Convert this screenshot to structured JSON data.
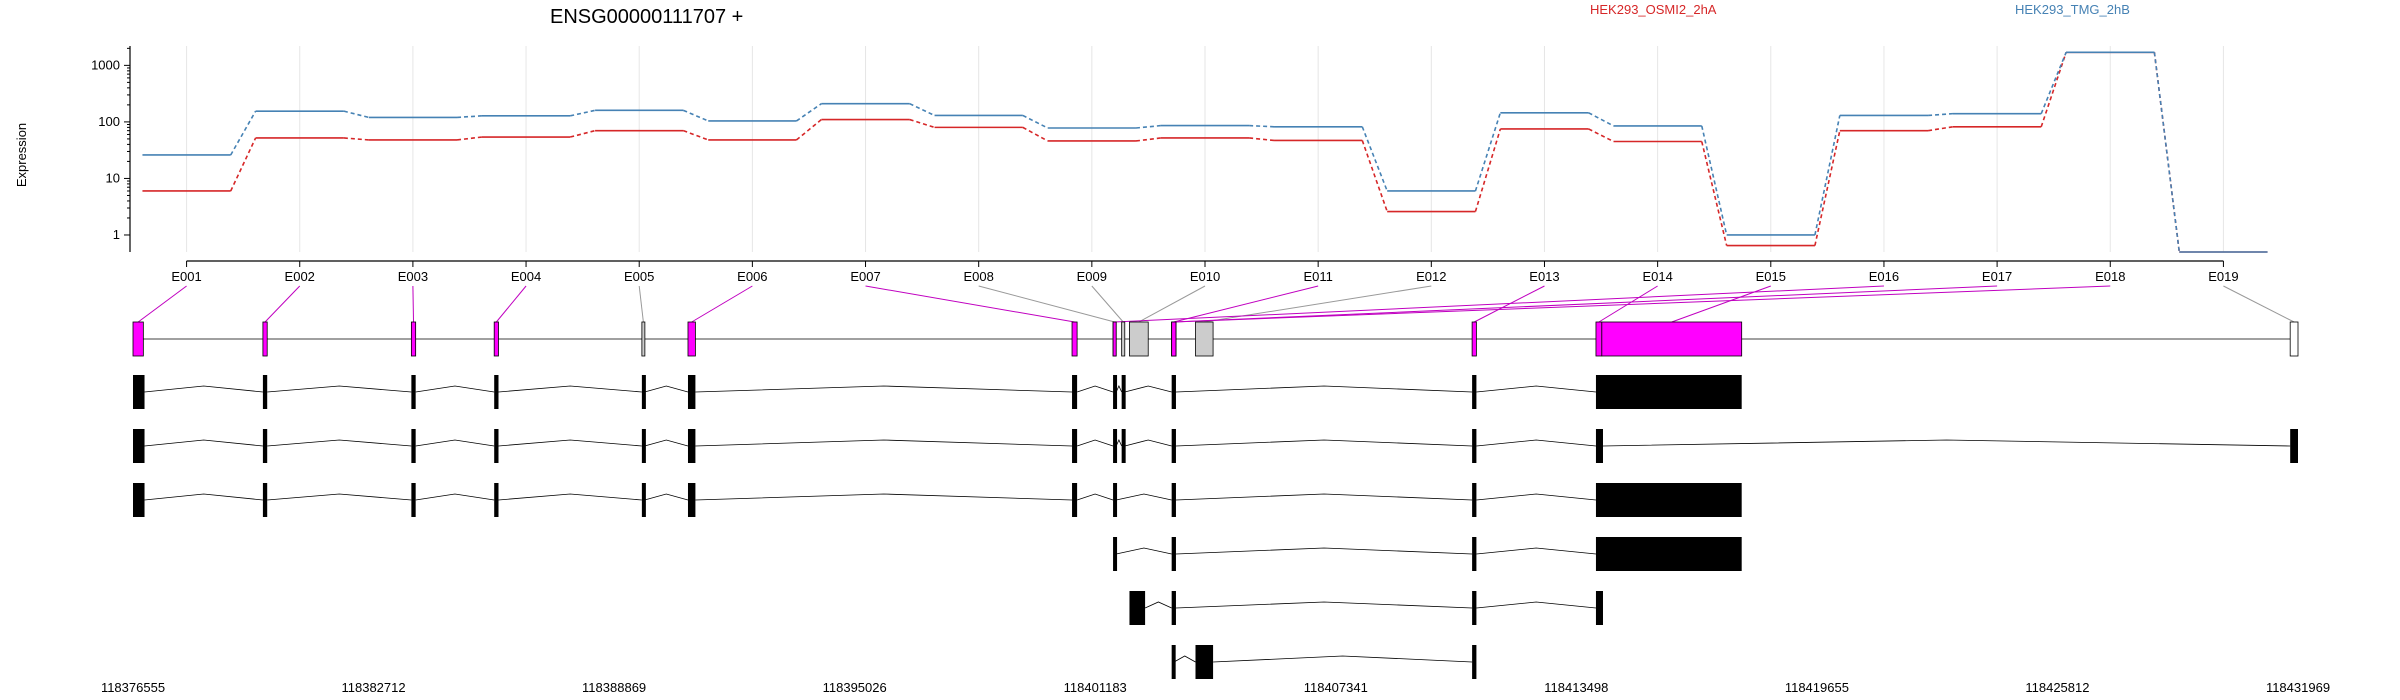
{
  "chart_data": {
    "type": "line",
    "title": "ENSG00000111707 +",
    "ylabel": "Expression",
    "yscale": "log",
    "ylim": [
      0.5,
      2200
    ],
    "yticks": [
      1,
      10,
      100,
      1000
    ],
    "yticklabels": [
      "1",
      "10",
      "100",
      "1000"
    ],
    "grid": true,
    "legend_position": "top",
    "categories": [
      "E001",
      "E002",
      "E003",
      "E004",
      "E005",
      "E006",
      "E007",
      "E008",
      "E009",
      "E010",
      "E011",
      "E012",
      "E013",
      "E014",
      "E015",
      "E016",
      "E017",
      "E018",
      "E019"
    ],
    "series": [
      {
        "name": "HEK293_OSMI2_2hA",
        "color": "#d62728",
        "values": [
          6,
          52,
          48,
          54,
          70,
          48,
          110,
          80,
          46,
          52,
          47,
          2.6,
          75,
          45,
          0.65,
          70,
          82,
          1700,
          0.5
        ]
      },
      {
        "name": "HEK293_TMG_2hB",
        "color": "#4682b4",
        "values": [
          26,
          155,
          120,
          128,
          160,
          104,
          210,
          130,
          78,
          86,
          82,
          6,
          145,
          85,
          1.0,
          130,
          140,
          1700,
          0.5
        ]
      }
    ],
    "gene_model": {
      "coordinates": [
        "118376555",
        "118382712",
        "118388869",
        "118395026",
        "118401183",
        "118407341",
        "118413498",
        "118419655",
        "118425812",
        "118431969"
      ],
      "genomic_start": 118376555,
      "genomic_end": 118431969,
      "exons": [
        {
          "id": "E001",
          "start": 118376555,
          "end": 118376820,
          "status": "tested"
        },
        {
          "id": "E002",
          "start": 118379880,
          "end": 118379990,
          "status": "tested"
        },
        {
          "id": "E003",
          "start": 118383680,
          "end": 118383790,
          "status": "tested"
        },
        {
          "id": "E004",
          "start": 118385800,
          "end": 118385910,
          "status": "tested"
        },
        {
          "id": "E005",
          "start": 118389580,
          "end": 118389650,
          "status": "untested"
        },
        {
          "id": "E006",
          "start": 118390760,
          "end": 118390950,
          "status": "tested"
        },
        {
          "id": "E007",
          "start": 118400590,
          "end": 118400720,
          "status": "tested"
        },
        {
          "id": "E008",
          "start": 118401640,
          "end": 118401720,
          "status": "untested"
        },
        {
          "id": "E009",
          "start": 118401860,
          "end": 118401940,
          "status": "untested"
        },
        {
          "id": "E010",
          "start": 118402060,
          "end": 118402540,
          "status": "untested"
        },
        {
          "id": "E011",
          "start": 118403140,
          "end": 118403250,
          "status": "tested"
        },
        {
          "id": "E012",
          "start": 118403750,
          "end": 118404200,
          "status": "untested"
        },
        {
          "id": "E013",
          "start": 118410830,
          "end": 118410940,
          "status": "tested"
        },
        {
          "id": "E014",
          "start": 118414000,
          "end": 118414150,
          "status": "tested"
        },
        {
          "id": "E015",
          "start": 118414150,
          "end": 118417730,
          "status": "tested"
        },
        {
          "id": "E016",
          "start": 118401640,
          "end": 118401720,
          "status": "tested"
        },
        {
          "id": "E017",
          "start": 118403140,
          "end": 118403250,
          "status": "tested"
        },
        {
          "id": "E018",
          "start": 118403140,
          "end": 118403250,
          "status": "tested"
        },
        {
          "id": "E019",
          "start": 118431769,
          "end": 118431969,
          "status": "untested"
        }
      ],
      "transcripts": [
        {
          "exons": [
            [
              118376555,
              118376850
            ],
            [
              118379880,
              118379990
            ],
            [
              118383680,
              118383790
            ],
            [
              118385800,
              118385910
            ],
            [
              118389580,
              118389650
            ],
            [
              118390760,
              118390950
            ],
            [
              118400590,
              118400720
            ],
            [
              118401640,
              118401720
            ],
            [
              118401860,
              118401940
            ],
            [
              118403140,
              118403250
            ],
            [
              118410830,
              118410940
            ],
            [
              118414000,
              118417730
            ]
          ]
        },
        {
          "exons": [
            [
              118376555,
              118376850
            ],
            [
              118379880,
              118379990
            ],
            [
              118383680,
              118383790
            ],
            [
              118385800,
              118385910
            ],
            [
              118389580,
              118389650
            ],
            [
              118390760,
              118390950
            ],
            [
              118400590,
              118400720
            ],
            [
              118401640,
              118401720
            ],
            [
              118401860,
              118401940
            ],
            [
              118403140,
              118403250
            ],
            [
              118410830,
              118410940
            ],
            [
              118414000,
              118414180
            ],
            [
              118431769,
              118431969
            ]
          ]
        },
        {
          "exons": [
            [
              118376555,
              118376850
            ],
            [
              118379880,
              118379990
            ],
            [
              118383680,
              118383790
            ],
            [
              118385800,
              118385910
            ],
            [
              118389580,
              118389650
            ],
            [
              118390760,
              118390950
            ],
            [
              118400590,
              118400720
            ],
            [
              118401640,
              118401720
            ],
            [
              118403140,
              118403250
            ],
            [
              118410830,
              118410940
            ],
            [
              118414000,
              118417730
            ]
          ]
        },
        {
          "exons": [
            [
              118401640,
              118401720
            ],
            [
              118403140,
              118403250
            ],
            [
              118410830,
              118410940
            ],
            [
              118414000,
              118417730
            ]
          ]
        },
        {
          "exons": [
            [
              118402060,
              118402460
            ],
            [
              118403140,
              118403250
            ],
            [
              118410830,
              118410940
            ],
            [
              118414000,
              118414180
            ]
          ]
        },
        {
          "exons": [
            [
              118403140,
              118403200
            ],
            [
              118403750,
              118404200
            ],
            [
              118410830,
              118410940
            ]
          ]
        }
      ]
    }
  }
}
